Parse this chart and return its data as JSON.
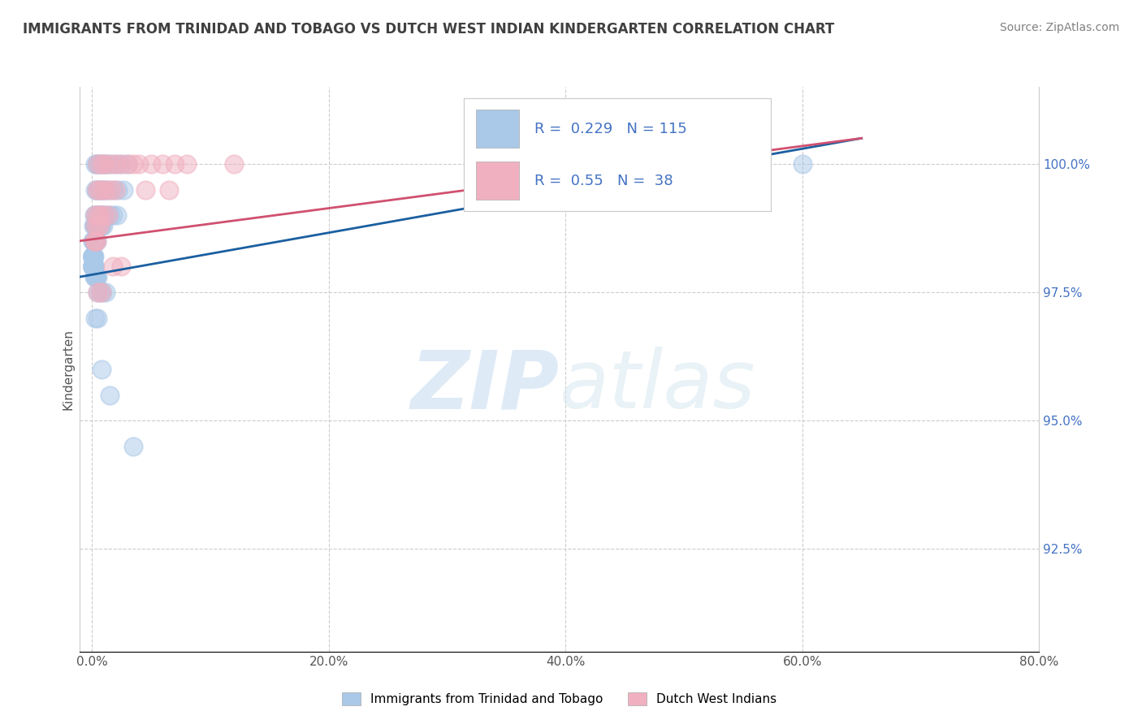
{
  "title": "IMMIGRANTS FROM TRINIDAD AND TOBAGO VS DUTCH WEST INDIAN KINDERGARTEN CORRELATION CHART",
  "source_text": "Source: ZipAtlas.com",
  "ylabel": "Kindergarten",
  "x_tick_labels": [
    "0.0%",
    "20.0%",
    "40.0%",
    "60.0%",
    "80.0%"
  ],
  "x_tick_values": [
    0.0,
    20.0,
    40.0,
    60.0,
    80.0
  ],
  "y_tick_labels": [
    "100.0%",
    "97.5%",
    "95.0%",
    "92.5%"
  ],
  "y_tick_values": [
    100.0,
    97.5,
    95.0,
    92.5
  ],
  "xlim": [
    -1.0,
    80.0
  ],
  "ylim": [
    90.5,
    101.5
  ],
  "legend_label_blue": "Immigrants from Trinidad and Tobago",
  "legend_label_pink": "Dutch West Indians",
  "R_blue": 0.229,
  "N_blue": 115,
  "R_pink": 0.55,
  "N_pink": 38,
  "blue_color": "#aac8e8",
  "pink_color": "#f0b0c0",
  "blue_line_color": "#1a5fa0",
  "pink_line_color": "#d05070",
  "watermark_zip": "ZIP",
  "watermark_atlas": "atlas",
  "blue_scatter_x": [
    0.3,
    0.4,
    0.5,
    0.6,
    0.8,
    1.0,
    1.2,
    1.5,
    2.0,
    2.5,
    3.0,
    0.3,
    0.4,
    0.5,
    0.7,
    0.9,
    1.1,
    1.4,
    1.8,
    2.2,
    2.7,
    0.2,
    0.3,
    0.4,
    0.5,
    0.6,
    0.7,
    0.8,
    0.9,
    1.0,
    1.2,
    1.5,
    1.8,
    2.1,
    0.15,
    0.2,
    0.25,
    0.3,
    0.35,
    0.4,
    0.45,
    0.5,
    0.55,
    0.65,
    0.75,
    0.85,
    0.95,
    0.1,
    0.12,
    0.14,
    0.16,
    0.18,
    0.2,
    0.22,
    0.24,
    0.26,
    0.28,
    0.3,
    0.35,
    0.4,
    0.05,
    0.06,
    0.07,
    0.08,
    0.09,
    0.1,
    0.12,
    0.14,
    0.16,
    0.18,
    0.05,
    0.06,
    0.07,
    0.08,
    0.09,
    0.1,
    0.11,
    0.12,
    0.13,
    0.14,
    0.15,
    0.16,
    0.17,
    0.18,
    0.19,
    0.2,
    0.22,
    0.25,
    0.28,
    0.32,
    0.38,
    0.45,
    0.5,
    0.7,
    0.9,
    1.2,
    0.3,
    0.5,
    0.8,
    1.5,
    3.5,
    60.0
  ],
  "blue_scatter_y": [
    100.0,
    100.0,
    100.0,
    100.0,
    100.0,
    100.0,
    100.0,
    100.0,
    100.0,
    100.0,
    100.0,
    99.5,
    99.5,
    99.5,
    99.5,
    99.5,
    99.5,
    99.5,
    99.5,
    99.5,
    99.5,
    99.0,
    99.0,
    99.0,
    99.0,
    99.0,
    99.0,
    99.0,
    99.0,
    99.0,
    99.0,
    99.0,
    99.0,
    99.0,
    98.8,
    98.8,
    98.8,
    98.8,
    98.8,
    98.8,
    98.8,
    98.8,
    98.8,
    98.8,
    98.8,
    98.8,
    98.8,
    98.5,
    98.5,
    98.5,
    98.5,
    98.5,
    98.5,
    98.5,
    98.5,
    98.5,
    98.5,
    98.5,
    98.5,
    98.5,
    98.2,
    98.2,
    98.2,
    98.2,
    98.2,
    98.2,
    98.2,
    98.2,
    98.2,
    98.2,
    98.0,
    98.0,
    98.0,
    98.0,
    98.0,
    98.0,
    98.0,
    98.0,
    98.0,
    98.0,
    98.0,
    98.0,
    98.0,
    98.0,
    98.0,
    98.0,
    97.8,
    97.8,
    97.8,
    97.8,
    97.8,
    97.8,
    97.5,
    97.5,
    97.5,
    97.5,
    97.0,
    97.0,
    96.0,
    95.5,
    94.5,
    100.0
  ],
  "pink_scatter_x": [
    0.5,
    0.8,
    1.0,
    1.5,
    2.0,
    2.5,
    3.0,
    3.5,
    4.0,
    5.0,
    6.0,
    8.0,
    0.4,
    0.6,
    0.9,
    1.2,
    1.6,
    2.0,
    0.3,
    0.5,
    0.7,
    1.0,
    1.4,
    0.2,
    0.3,
    0.4,
    1.8,
    2.5,
    7.0,
    0.5,
    0.8,
    4.5,
    6.5,
    12.0,
    0.3,
    0.5,
    0.7
  ],
  "pink_scatter_y": [
    100.0,
    100.0,
    100.0,
    100.0,
    100.0,
    100.0,
    100.0,
    100.0,
    100.0,
    100.0,
    100.0,
    100.0,
    99.5,
    99.5,
    99.5,
    99.5,
    99.5,
    99.5,
    99.0,
    99.0,
    99.0,
    99.0,
    99.0,
    98.5,
    98.5,
    98.5,
    98.0,
    98.0,
    100.0,
    97.5,
    97.5,
    99.5,
    99.5,
    100.0,
    98.8,
    98.8,
    98.8
  ],
  "trendline_blue_x0": 0.0,
  "trendline_blue_y0": 97.8,
  "trendline_blue_x1": 65.0,
  "trendline_blue_y1": 100.5,
  "trendline_pink_x0": 0.0,
  "trendline_pink_y0": 98.5,
  "trendline_pink_x1": 65.0,
  "trendline_pink_y1": 100.5,
  "background_color": "#ffffff",
  "grid_color": "#cccccc",
  "title_color": "#404040",
  "source_color": "#808080"
}
